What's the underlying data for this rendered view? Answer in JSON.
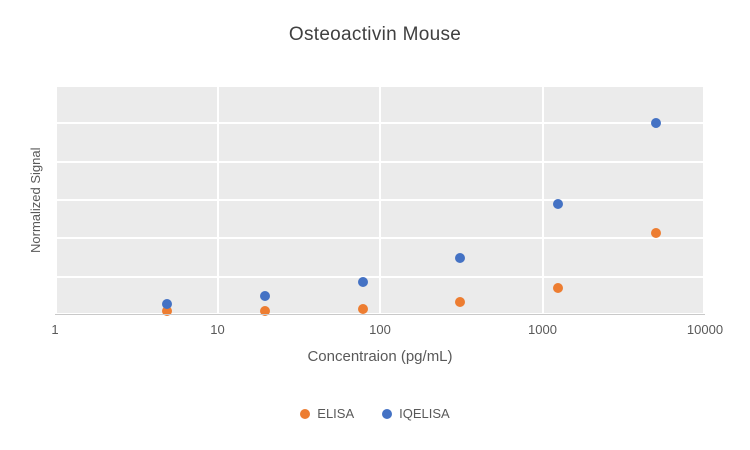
{
  "chart_data": {
    "type": "scatter",
    "title": "Osteoactivin Mouse",
    "xlabel": "Concentraion (pg/mL)",
    "ylabel": "Normalized Signal",
    "x_scale": "log",
    "xlim": [
      1,
      10000
    ],
    "x_ticks": [
      1,
      10,
      100,
      1000,
      10000
    ],
    "ylim": [
      0,
      1.2
    ],
    "y_grid_step": 0.2,
    "grid": true,
    "legend_position": "bottom",
    "x": [
      4.88,
      19.5,
      78.1,
      312.5,
      1250,
      5000
    ],
    "series": [
      {
        "name": "ELISA",
        "color": "#ED7D31",
        "values": [
          0.02,
          0.02,
          0.03,
          0.07,
          0.14,
          0.43
        ]
      },
      {
        "name": "IQELISA",
        "color": "#4472C4",
        "values": [
          0.06,
          0.1,
          0.17,
          0.3,
          0.58,
          1.0
        ]
      }
    ]
  },
  "colors": {
    "plot_background": "#ebebeb",
    "gridline": "#ffffff",
    "title_text": "#404040",
    "axis_text": "#595959"
  }
}
